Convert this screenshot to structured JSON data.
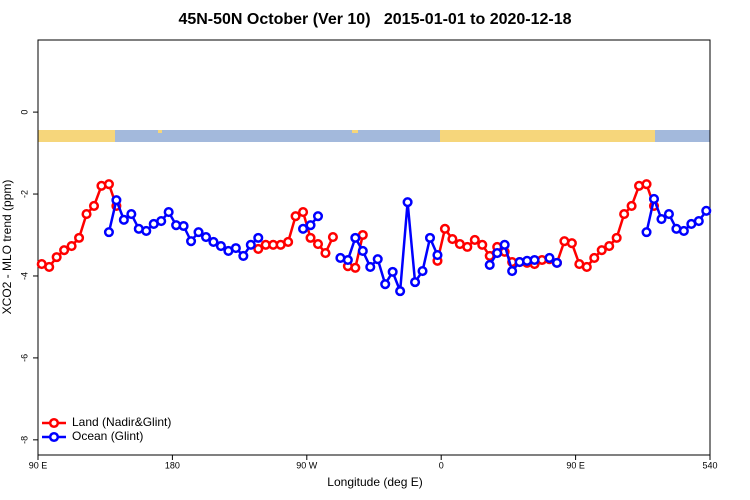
{
  "chart_data": {
    "type": "line",
    "title": "45N-50N October (Ver 10)   2015-01-01 to 2020-12-18",
    "xlabel": "Longitude (deg E)",
    "ylabel": "XCO2 - MLO trend (ppm)",
    "xlim": [
      90,
      540
    ],
    "ylim": [
      -8.37,
      1.76
    ],
    "xticks": [
      {
        "value": 90,
        "label": "90 E"
      },
      180,
      {
        "value": 270,
        "label": "90 W"
      },
      {
        "value": 360,
        "label": "0"
      },
      {
        "value": 450,
        "label": "90 E"
      },
      540
    ],
    "yticks": [
      0,
      -2,
      -4,
      -6,
      -8
    ],
    "legend": "bottom-left",
    "x": [
      92.5,
      97.5,
      102.5,
      107.5,
      112.5,
      117.5,
      122.5,
      127.5,
      132.5,
      137.5,
      142.5,
      147.5,
      152.5,
      157.5,
      162.5,
      167.5,
      172.5,
      177.5,
      182.5,
      187.5,
      192.5,
      197.5,
      202.5,
      207.5,
      212.5,
      217.5,
      222.5,
      227.5,
      232.5,
      237.5,
      242.5,
      247.5,
      252.5,
      257.5,
      262.5,
      267.5,
      272.5,
      277.5,
      282.5,
      287.5,
      292.5,
      297.5,
      302.5,
      307.5,
      312.5,
      317.5,
      322.5,
      327.5,
      332.5,
      337.5,
      342.5,
      347.5,
      352.5,
      357.5,
      362.5,
      367.5,
      372.5,
      377.5,
      382.5,
      387.5,
      392.5,
      397.5,
      402.5,
      407.5,
      412.5,
      417.5,
      422.5,
      427.5,
      432.5,
      437.5,
      442.5,
      447.5,
      452.5,
      457.5,
      462.5,
      467.5,
      472.5,
      477.5,
      482.5,
      487.5,
      492.5,
      497.5,
      502.5,
      507.5,
      512.5,
      517.5,
      522.5,
      527.5,
      532.5,
      537.5
    ],
    "series": [
      {
        "name": "Land (Nadir&Glint)",
        "color": "#ff0000",
        "values": [
          -3.71,
          -3.78,
          -3.54,
          -3.37,
          -3.27,
          -3.07,
          -2.49,
          -2.29,
          -1.8,
          -1.76,
          -2.29,
          null,
          null,
          null,
          null,
          null,
          null,
          null,
          null,
          null,
          null,
          null,
          null,
          null,
          null,
          null,
          null,
          null,
          null,
          -3.34,
          -3.24,
          -3.24,
          -3.24,
          -3.17,
          -2.54,
          -2.44,
          -3.07,
          -3.22,
          -3.44,
          -3.05,
          null,
          -3.76,
          -3.8,
          -3.0,
          null,
          null,
          null,
          null,
          null,
          null,
          null,
          null,
          null,
          -3.63,
          -2.85,
          -3.1,
          -3.22,
          -3.29,
          -3.12,
          -3.24,
          -3.51,
          -3.29,
          -3.41,
          -3.66,
          -3.66,
          -3.68,
          -3.71,
          -3.61,
          -3.59,
          -3.68,
          -3.15,
          -3.2,
          -3.71,
          -3.78,
          -3.56,
          -3.37,
          -3.27,
          -3.07,
          -2.49,
          -2.29,
          -1.8,
          -1.76,
          -2.29,
          null,
          null,
          null,
          null,
          null,
          null,
          null
        ]
      },
      {
        "name": "Ocean (Glint)",
        "color": "#0000ff",
        "values": [
          null,
          null,
          null,
          null,
          null,
          null,
          null,
          null,
          null,
          -2.93,
          -2.15,
          -2.63,
          -2.49,
          -2.85,
          -2.9,
          -2.73,
          -2.66,
          -2.44,
          -2.76,
          -2.78,
          -3.15,
          -2.93,
          -3.05,
          -3.17,
          -3.27,
          -3.39,
          -3.32,
          -3.51,
          -3.24,
          -3.07,
          null,
          null,
          null,
          null,
          null,
          -2.85,
          -2.76,
          -2.54,
          null,
          null,
          -3.56,
          -3.61,
          -3.07,
          -3.39,
          -3.78,
          -3.59,
          -4.2,
          -3.9,
          -4.37,
          -2.2,
          -4.15,
          -3.88,
          -3.07,
          -3.49,
          null,
          null,
          null,
          null,
          null,
          null,
          -3.73,
          -3.44,
          -3.24,
          -3.88,
          -3.66,
          -3.63,
          -3.61,
          null,
          -3.56,
          -3.68,
          null,
          null,
          null,
          null,
          null,
          null,
          null,
          null,
          null,
          null,
          null,
          -2.93,
          -2.12,
          -2.61,
          -2.49,
          -2.85,
          -2.9,
          -2.73,
          -2.66,
          -2.41
        ]
      }
    ]
  }
}
